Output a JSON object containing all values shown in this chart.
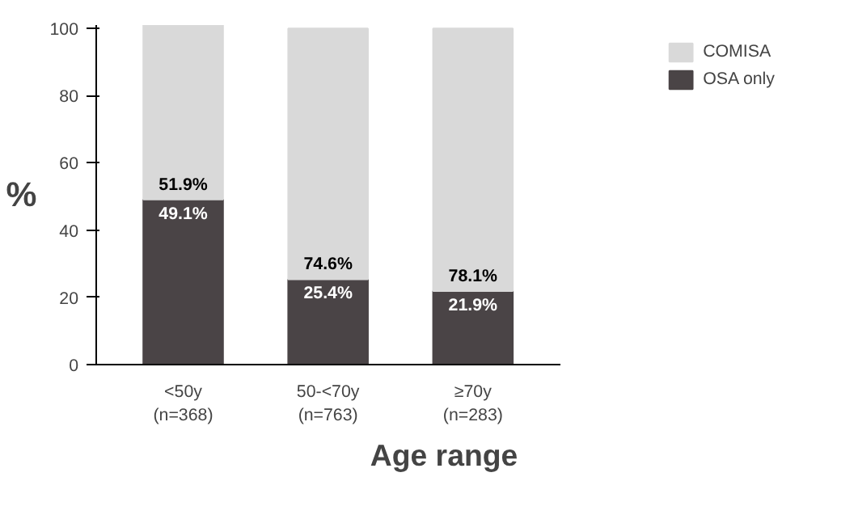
{
  "chart_data": {
    "type": "bar",
    "stacked": true,
    "xlabel": "Age range",
    "ylabel": "%",
    "categories": [
      "<50y\n(n=368)",
      "50-<70y\n(n=763)",
      "≥70y\n(n=283)"
    ],
    "series": [
      {
        "name": "OSA only",
        "color": "#4a4446",
        "values": [
          49.1,
          25.4,
          21.9
        ],
        "value_labels": [
          "49.1%",
          "25.4%",
          "21.9%"
        ]
      },
      {
        "name": "COMISA",
        "color": "#d9d9d9",
        "values": [
          51.9,
          74.6,
          78.1
        ],
        "value_labels": [
          "51.9%",
          "74.6%",
          "78.1%"
        ]
      }
    ],
    "ylim": [
      0,
      101
    ],
    "yticks": [
      0,
      20,
      40,
      60,
      80,
      100
    ],
    "grid": false,
    "legend": "top right"
  }
}
